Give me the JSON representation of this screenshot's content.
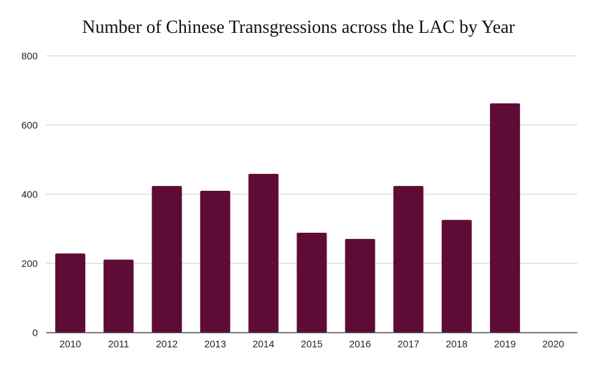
{
  "chart_data": {
    "type": "bar",
    "title": "Number of Chinese Transgressions across the LAC by Year",
    "xlabel": "",
    "ylabel": "",
    "categories": [
      "2010",
      "2011",
      "2012",
      "2013",
      "2014",
      "2015",
      "2016",
      "2017",
      "2018",
      "2019",
      "2020"
    ],
    "values": [
      229,
      211,
      424,
      410,
      459,
      289,
      271,
      424,
      326,
      663,
      0
    ],
    "ylim": [
      0,
      800
    ],
    "yticks": [
      0,
      200,
      400,
      600,
      800
    ],
    "grid": true,
    "legend": "none",
    "bar_color": "#5e0c36",
    "grid_color": "#cccccc",
    "axis_color": "#333333"
  }
}
